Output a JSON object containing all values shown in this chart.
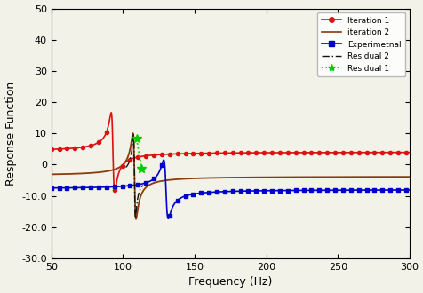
{
  "title": "",
  "xlabel": "Frequency (Hz)",
  "ylabel": "Response Function",
  "xlim": [
    50,
    300
  ],
  "ylim": [
    -30,
    50
  ],
  "yticks": [
    -30,
    -20.0,
    -10.0,
    0,
    10,
    20,
    30,
    40,
    50
  ],
  "ytick_labels": [
    "-30",
    "-20.0",
    "-10.0",
    "0",
    "10",
    "20",
    "30",
    "40",
    "50"
  ],
  "xticks": [
    50,
    100,
    150,
    200,
    250,
    300
  ],
  "fn1": 93.0,
  "fn2": 108.0,
  "fn_exp": 130.0,
  "zeta1": 0.013,
  "zeta2": 0.01,
  "zeta_exp": 0.012,
  "scale1": 1.0,
  "scale2": 1.0,
  "scale_exp": 1.0,
  "color_iter1": "#dd1111",
  "color_iter2": "#8B3A0F",
  "color_exp": "#0000cc",
  "color_res2": "#111111",
  "color_res1": "#00cc00",
  "legend_labels": [
    "Iteration 1",
    "iteration 2",
    "Experimetnal",
    "Residual 2",
    "Residual 1"
  ],
  "background_color": "#f2f2e8"
}
